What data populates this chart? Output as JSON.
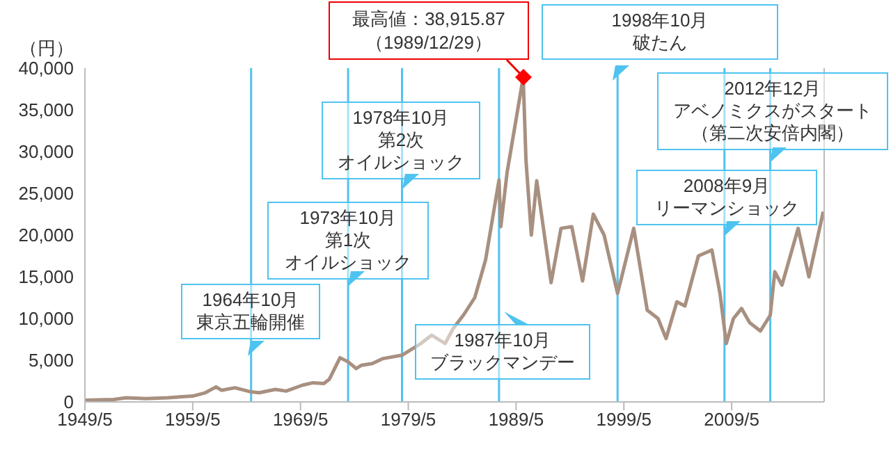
{
  "chart_data": {
    "type": "line",
    "ylabel": "（円）",
    "x": [
      "1949-05",
      "1952-01",
      "1953-03",
      "1955-01",
      "1957-01",
      "1959-05",
      "1960-07",
      "1961-07",
      "1962-01",
      "1963-04",
      "1964-10",
      "1965-07",
      "1967-01",
      "1968-01",
      "1969-07",
      "1970-07",
      "1971-07",
      "1972-01",
      "1973-01",
      "1973-10",
      "1974-07",
      "1975-01",
      "1976-01",
      "1977-01",
      "1978-10",
      "1979-07",
      "1980-07",
      "1981-07",
      "1982-10",
      "1983-07",
      "1984-07",
      "1985-07",
      "1986-07",
      "1987-10",
      "1987-12",
      "1988-07",
      "1989-12-29",
      "1990-04",
      "1990-10",
      "1991-04",
      "1992-08",
      "1993-07",
      "1994-07",
      "1995-07",
      "1996-07",
      "1997-07",
      "1998-10",
      "2000-04",
      "2001-07",
      "2002-07",
      "2003-04",
      "2004-04",
      "2005-01",
      "2006-04",
      "2007-07",
      "2008-04",
      "2008-11",
      "2009-07",
      "2010-04",
      "2011-01",
      "2012-01",
      "2012-12",
      "2013-05",
      "2014-01",
      "2015-07",
      "2016-07",
      "2017-11"
    ],
    "series": [
      {
        "color": "#a89080",
        "values": [
          200,
          300,
          500,
          400,
          500,
          700,
          1100,
          1800,
          1400,
          1700,
          1200,
          1100,
          1500,
          1300,
          2000,
          2300,
          2200,
          2700,
          5300,
          4800,
          4000,
          4400,
          4600,
          5200,
          5600,
          6200,
          7000,
          8000,
          7000,
          8800,
          10500,
          12500,
          17000,
          26600,
          21000,
          27500,
          38915.87,
          29000,
          20000,
          26500,
          14300,
          20800,
          21000,
          14500,
          22500,
          20000,
          13000,
          20800,
          11000,
          10000,
          7600,
          12000,
          11500,
          17500,
          18200,
          13000,
          7000,
          10000,
          11200,
          9500,
          8500,
          10400,
          15600,
          14000,
          20800,
          15000,
          22800
        ]
      }
    ],
    "xlim": [
      "1949-05",
      "2017-12"
    ],
    "xticks": [
      {
        "value": "1949-05",
        "label": "1949/5"
      },
      {
        "value": "1959-05",
        "label": "1959/5"
      },
      {
        "value": "1969-05",
        "label": "1969/5"
      },
      {
        "value": "1979-05",
        "label": "1979/5"
      },
      {
        "value": "1989-05",
        "label": "1989/5"
      },
      {
        "value": "1999-05",
        "label": "1999/5"
      },
      {
        "value": "2009-05",
        "label": "2009/5"
      }
    ],
    "ylim": [
      0,
      40000
    ],
    "yticks": [
      0,
      {
        "value": 5000,
        "label": "5,000"
      },
      {
        "value": 10000,
        "label": "10,000"
      },
      {
        "value": 15000,
        "label": "15,000"
      },
      {
        "value": 20000,
        "label": "20,000"
      },
      {
        "value": 25000,
        "label": "25,000"
      },
      {
        "value": 30000,
        "label": "30,000"
      },
      {
        "value": 35000,
        "label": "35,000"
      },
      {
        "value": 40000,
        "label": "40,000"
      }
    ],
    "grid": false,
    "legend": false,
    "marker": "none",
    "line_style": "solid",
    "ref_lines": [
      {
        "axis": "x",
        "value": "1964-10",
        "label": "1964年10月東京五輪開催",
        "color": "#4fc3ef"
      },
      {
        "axis": "x",
        "value": "1973-10",
        "label": "1973年10月第1次オイルショック",
        "color": "#4fc3ef"
      },
      {
        "axis": "x",
        "value": "1978-10",
        "label": "1978年10月第2次オイルショック",
        "color": "#4fc3ef"
      },
      {
        "axis": "x",
        "value": "1987-10",
        "label": "1987年10月ブラックマンデー",
        "color": "#4fc3ef"
      },
      {
        "axis": "x",
        "value": "1998-10",
        "label": "1998年10月破たん",
        "color": "#4fc3ef"
      },
      {
        "axis": "x",
        "value": "2008-09",
        "label": "2008年9月リーマンショック",
        "color": "#4fc3ef"
      },
      {
        "axis": "x",
        "value": "2012-12",
        "label": "2012年12月アベノミクスがスタート（第二次安倍内閣）",
        "color": "#4fc3ef"
      }
    ],
    "annotations": [
      {
        "text": "最高値：38,915.87（1989/12/29）",
        "x": "1989-12-29",
        "y": 38915.87
      }
    ]
  }
}
